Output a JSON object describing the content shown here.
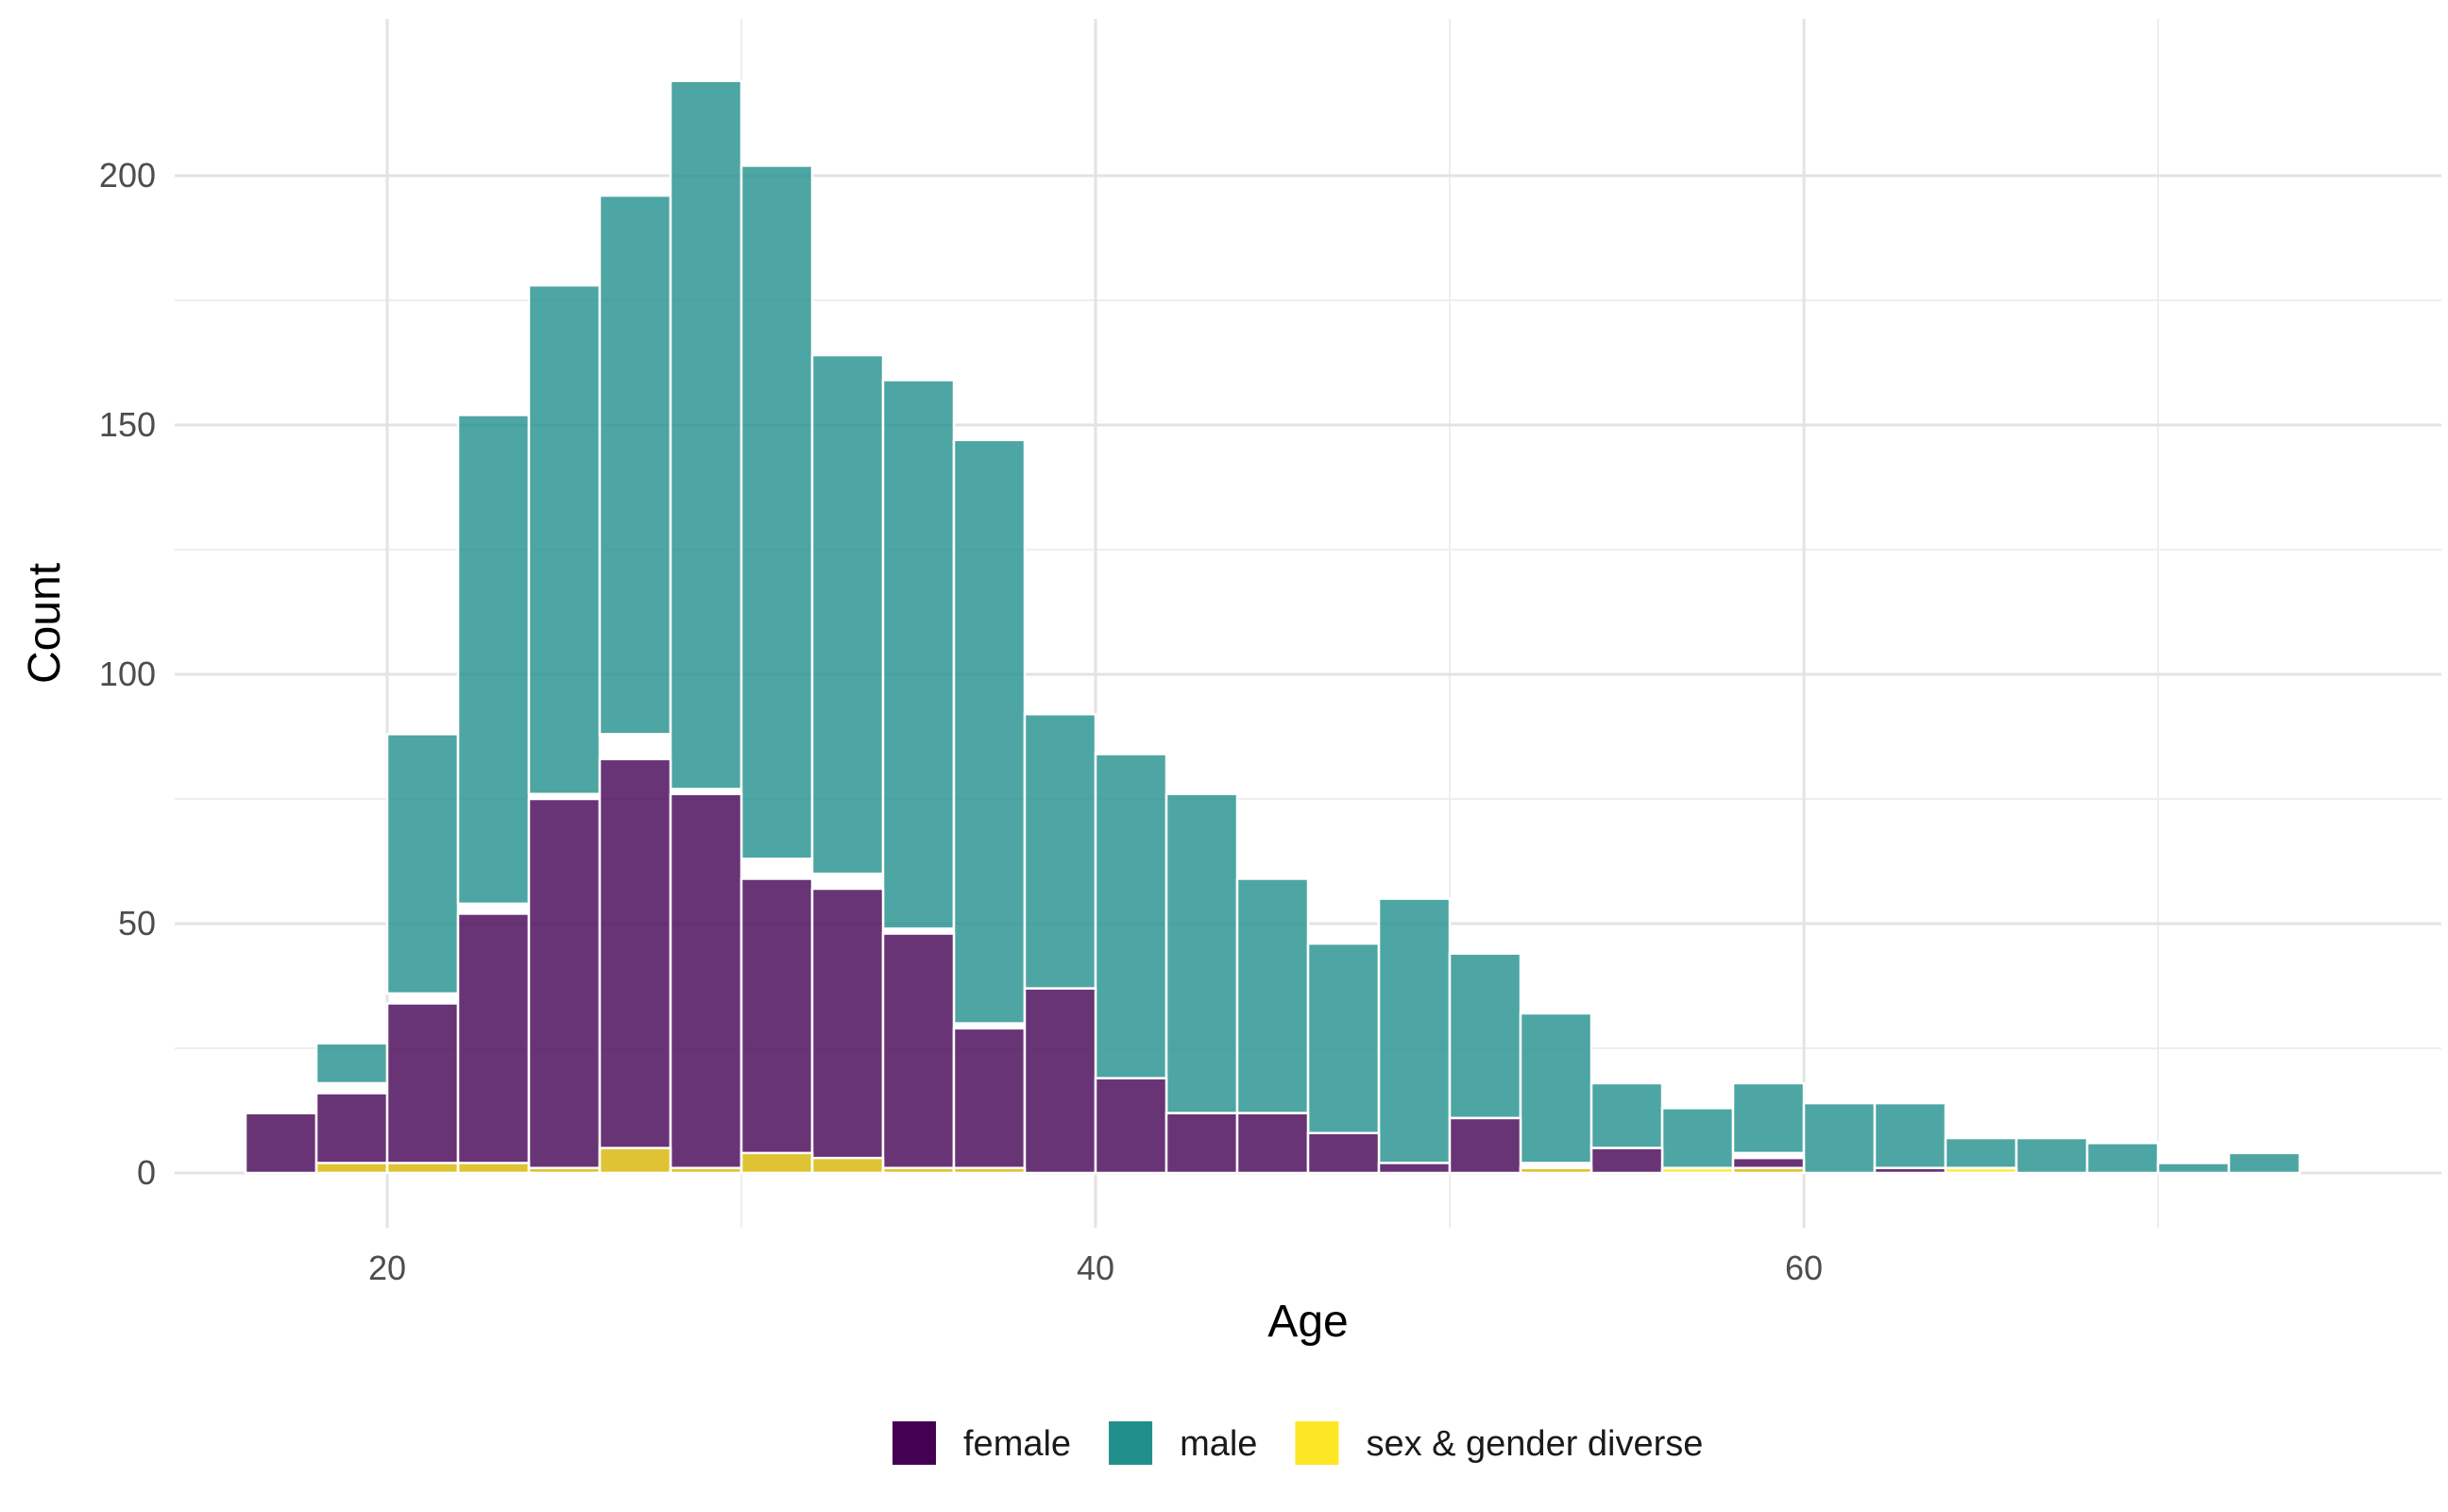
{
  "chart_data": {
    "type": "bar",
    "stacked": true,
    "xlabel": "Age",
    "ylabel": "Count",
    "xlim": [
      14.5,
      77.5
    ],
    "ylim": [
      -10,
      230
    ],
    "xticks": [
      20,
      40,
      60
    ],
    "xticks_minor": [
      30,
      50,
      70
    ],
    "yticks": [
      0,
      50,
      100,
      150,
      200
    ],
    "yticks_minor": [
      25,
      75,
      125,
      175
    ],
    "grid": true,
    "legend_position": "bottom",
    "bin_width": 2,
    "bins": [
      {
        "x0": 16,
        "x1": 18,
        "female": 12,
        "male": 0,
        "sgd": 0
      },
      {
        "x0": 18,
        "x1": 20,
        "female": 16,
        "male": 8,
        "sgd": 2
      },
      {
        "x0": 20,
        "x1": 22,
        "female": 34,
        "male": 52,
        "sgd": 2
      },
      {
        "x0": 22,
        "x1": 24,
        "female": 52,
        "male": 98,
        "sgd": 2
      },
      {
        "x0": 24,
        "x1": 26,
        "female": 75,
        "male": 102,
        "sgd": 1
      },
      {
        "x0": 26,
        "x1": 28,
        "female": 83,
        "male": 108,
        "sgd": 5
      },
      {
        "x0": 28,
        "x1": 30,
        "female": 76,
        "male": 142,
        "sgd": 1
      },
      {
        "x0": 30,
        "x1": 32,
        "female": 59,
        "male": 139,
        "sgd": 4
      },
      {
        "x0": 32,
        "x1": 34,
        "female": 57,
        "male": 104,
        "sgd": 3
      },
      {
        "x0": 34,
        "x1": 36,
        "female": 48,
        "male": 110,
        "sgd": 1
      },
      {
        "x0": 36,
        "x1": 38,
        "female": 29,
        "male": 117,
        "sgd": 1
      },
      {
        "x0": 38,
        "x1": 40,
        "female": 37,
        "male": 55,
        "sgd": 0
      },
      {
        "x0": 40,
        "x1": 42,
        "female": 19,
        "male": 65,
        "sgd": 0
      },
      {
        "x0": 42,
        "x1": 44,
        "female": 12,
        "male": 64,
        "sgd": 0
      },
      {
        "x0": 44,
        "x1": 46,
        "female": 12,
        "male": 47,
        "sgd": 0
      },
      {
        "x0": 46,
        "x1": 48,
        "female": 8,
        "male": 38,
        "sgd": 0
      },
      {
        "x0": 48,
        "x1": 50,
        "female": 2,
        "male": 53,
        "sgd": 0
      },
      {
        "x0": 50,
        "x1": 52,
        "female": 11,
        "male": 33,
        "sgd": 0
      },
      {
        "x0": 52,
        "x1": 54,
        "female": 1,
        "male": 30,
        "sgd": 1
      },
      {
        "x0": 54,
        "x1": 56,
        "female": 5,
        "male": 13,
        "sgd": 0
      },
      {
        "x0": 56,
        "x1": 58,
        "female": 0,
        "male": 12,
        "sgd": 1
      },
      {
        "x0": 58,
        "x1": 60,
        "female": 3,
        "male": 14,
        "sgd": 1
      },
      {
        "x0": 60,
        "x1": 62,
        "female": 0,
        "male": 14,
        "sgd": 0
      },
      {
        "x0": 62,
        "x1": 64,
        "female": 1,
        "male": 13,
        "sgd": 0
      },
      {
        "x0": 64,
        "x1": 66,
        "female": 0,
        "male": 6,
        "sgd": 1
      },
      {
        "x0": 66,
        "x1": 68,
        "female": 0,
        "male": 7,
        "sgd": 0
      },
      {
        "x0": 68,
        "x1": 70,
        "female": 0,
        "male": 6,
        "sgd": 0
      },
      {
        "x0": 70,
        "x1": 72,
        "female": 0,
        "male": 2,
        "sgd": 0
      },
      {
        "x0": 72,
        "x1": 74,
        "female": 0,
        "male": 4,
        "sgd": 0
      }
    ],
    "series": [
      {
        "key": "female",
        "name": "female",
        "color": "#440154"
      },
      {
        "key": "male",
        "name": "male",
        "color": "#21908C"
      },
      {
        "key": "sgd",
        "name": "sex & gender diverse",
        "color": "#FDE725"
      }
    ]
  },
  "colors": {
    "grid_major": "#e3e3e3",
    "grid_minor": "#eeeeee",
    "bar_outline": "#ffffff",
    "bar_opacity": 0.8
  }
}
